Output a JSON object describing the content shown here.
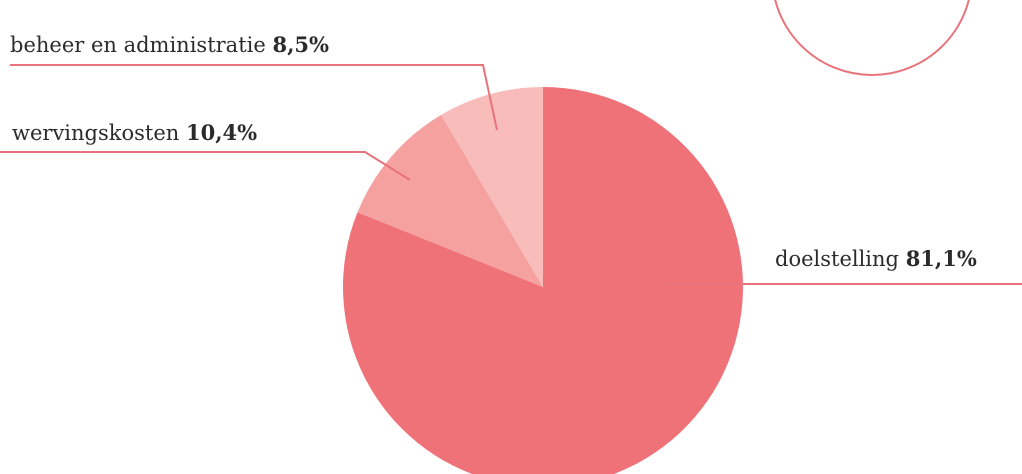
{
  "chart_data": {
    "type": "pie",
    "categories": [
      "doelstelling",
      "wervingskosten",
      "beheer en administratie"
    ],
    "values": [
      81.1,
      10.4,
      8.5
    ],
    "value_labels": [
      "81,1%",
      "10,4%",
      "8,5%"
    ],
    "colors": [
      "#ef7279",
      "#f5a19f",
      "#f8bcbb"
    ]
  }
}
